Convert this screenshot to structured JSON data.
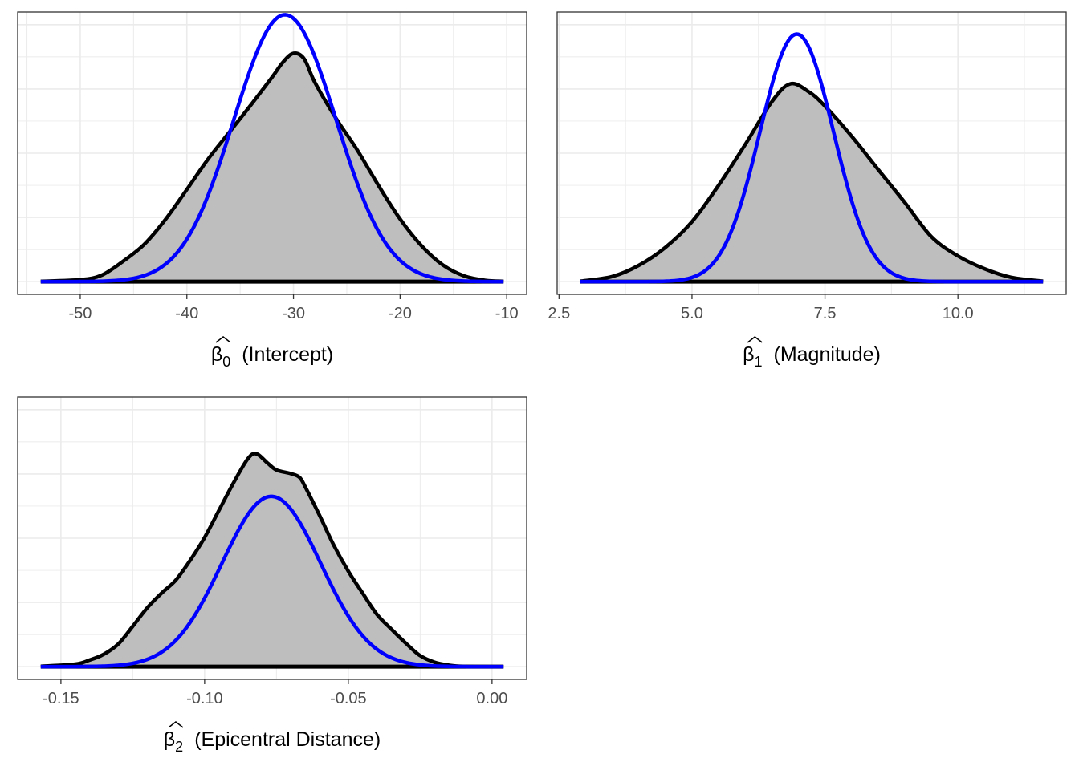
{
  "colors": {
    "density_fill": "#bebebe",
    "density_line": "#000000",
    "normal_line": "#0000ff",
    "grid": "#ebebeb",
    "panel_border": "#333333"
  },
  "chart_data": [
    {
      "type": "area",
      "xlabel": {
        "symbol": "β",
        "subscript": "0",
        "text": "(Intercept)"
      },
      "xlim": [
        -53.7,
        -10.3
      ],
      "ylim": [
        0,
        0.08
      ],
      "x_ticks": [
        -50,
        -40,
        -30,
        -20,
        -10
      ],
      "x_tick_labels": [
        "-50",
        "-40",
        "-30",
        "-20",
        "-10"
      ],
      "grid": true,
      "series": [
        {
          "kind": "density",
          "x": [
            -53.7,
            -50,
            -48,
            -46,
            -44,
            -42,
            -40,
            -38,
            -36,
            -34,
            -32,
            -31,
            -30,
            -29,
            -28,
            -26,
            -24,
            -22,
            -20,
            -18,
            -16,
            -14,
            -12,
            -10.3
          ],
          "y": [
            0.0001,
            0.0006,
            0.002,
            0.0063,
            0.0116,
            0.0194,
            0.0287,
            0.0382,
            0.0466,
            0.055,
            0.0637,
            0.0683,
            0.0711,
            0.0694,
            0.0621,
            0.0508,
            0.0409,
            0.0298,
            0.0195,
            0.0112,
            0.0052,
            0.0018,
            0.0004,
            0.0001
          ]
        },
        {
          "kind": "normal",
          "mean": -30.8,
          "sd": 4.8,
          "xmin": -53.7,
          "xmax": -10.3
        }
      ]
    },
    {
      "type": "area",
      "xlabel": {
        "symbol": "β",
        "subscript": "1",
        "text": "(Magnitude)"
      },
      "xlim": [
        2.9,
        11.6
      ],
      "ylim": [
        0,
        0.6
      ],
      "x_ticks": [
        2.5,
        5.0,
        7.5,
        10.0
      ],
      "x_tick_labels": [
        "2.5",
        "5.0",
        "7.5",
        "10.0"
      ],
      "grid": true,
      "series": [
        {
          "kind": "density",
          "x": [
            2.9,
            3.5,
            4.0,
            4.5,
            5.0,
            5.5,
            6.0,
            6.5,
            6.85,
            7.2,
            7.5,
            8.0,
            8.5,
            9.0,
            9.5,
            10.0,
            10.5,
            11.0,
            11.6
          ],
          "y": [
            0.001,
            0.012,
            0.038,
            0.08,
            0.14,
            0.225,
            0.32,
            0.42,
            0.462,
            0.443,
            0.41,
            0.34,
            0.262,
            0.185,
            0.105,
            0.06,
            0.03,
            0.01,
            0.001
          ]
        },
        {
          "kind": "normal",
          "mean": 6.97,
          "sd": 0.69,
          "xmin": 2.9,
          "xmax": 11.6
        }
      ]
    },
    {
      "type": "area",
      "xlabel": {
        "symbol": "β",
        "subscript": "2",
        "text": "(Epicentral Distance)"
      },
      "xlim": [
        -0.157,
        0.004
      ],
      "ylim": [
        0,
        35
      ],
      "x_ticks": [
        -0.15,
        -0.1,
        -0.05,
        0.0
      ],
      "x_tick_labels": [
        "-0.15",
        "-0.10",
        "-0.05",
        "0.00"
      ],
      "grid": true,
      "series": [
        {
          "kind": "density",
          "x": [
            -0.157,
            -0.145,
            -0.14,
            -0.135,
            -0.13,
            -0.125,
            -0.12,
            -0.115,
            -0.11,
            -0.105,
            -0.1,
            -0.095,
            -0.09,
            -0.085,
            -0.082,
            -0.078,
            -0.075,
            -0.07,
            -0.067,
            -0.065,
            -0.06,
            -0.055,
            -0.05,
            -0.045,
            -0.04,
            -0.035,
            -0.03,
            -0.025,
            -0.02,
            -0.015,
            -0.01,
            0.004
          ],
          "y": [
            0.05,
            0.35,
            0.9,
            1.7,
            3.1,
            5.5,
            8.0,
            10.0,
            11.8,
            14.5,
            17.6,
            21.3,
            25.0,
            28.3,
            29.0,
            27.7,
            26.8,
            26.3,
            25.8,
            24.5,
            20.6,
            16.5,
            13.0,
            10.0,
            7.1,
            5.1,
            3.2,
            1.5,
            0.6,
            0.2,
            0.05,
            0.0
          ]
        },
        {
          "kind": "normal",
          "mean": -0.0768,
          "sd": 0.0172,
          "xmin": -0.157,
          "xmax": 0.004
        }
      ]
    }
  ]
}
